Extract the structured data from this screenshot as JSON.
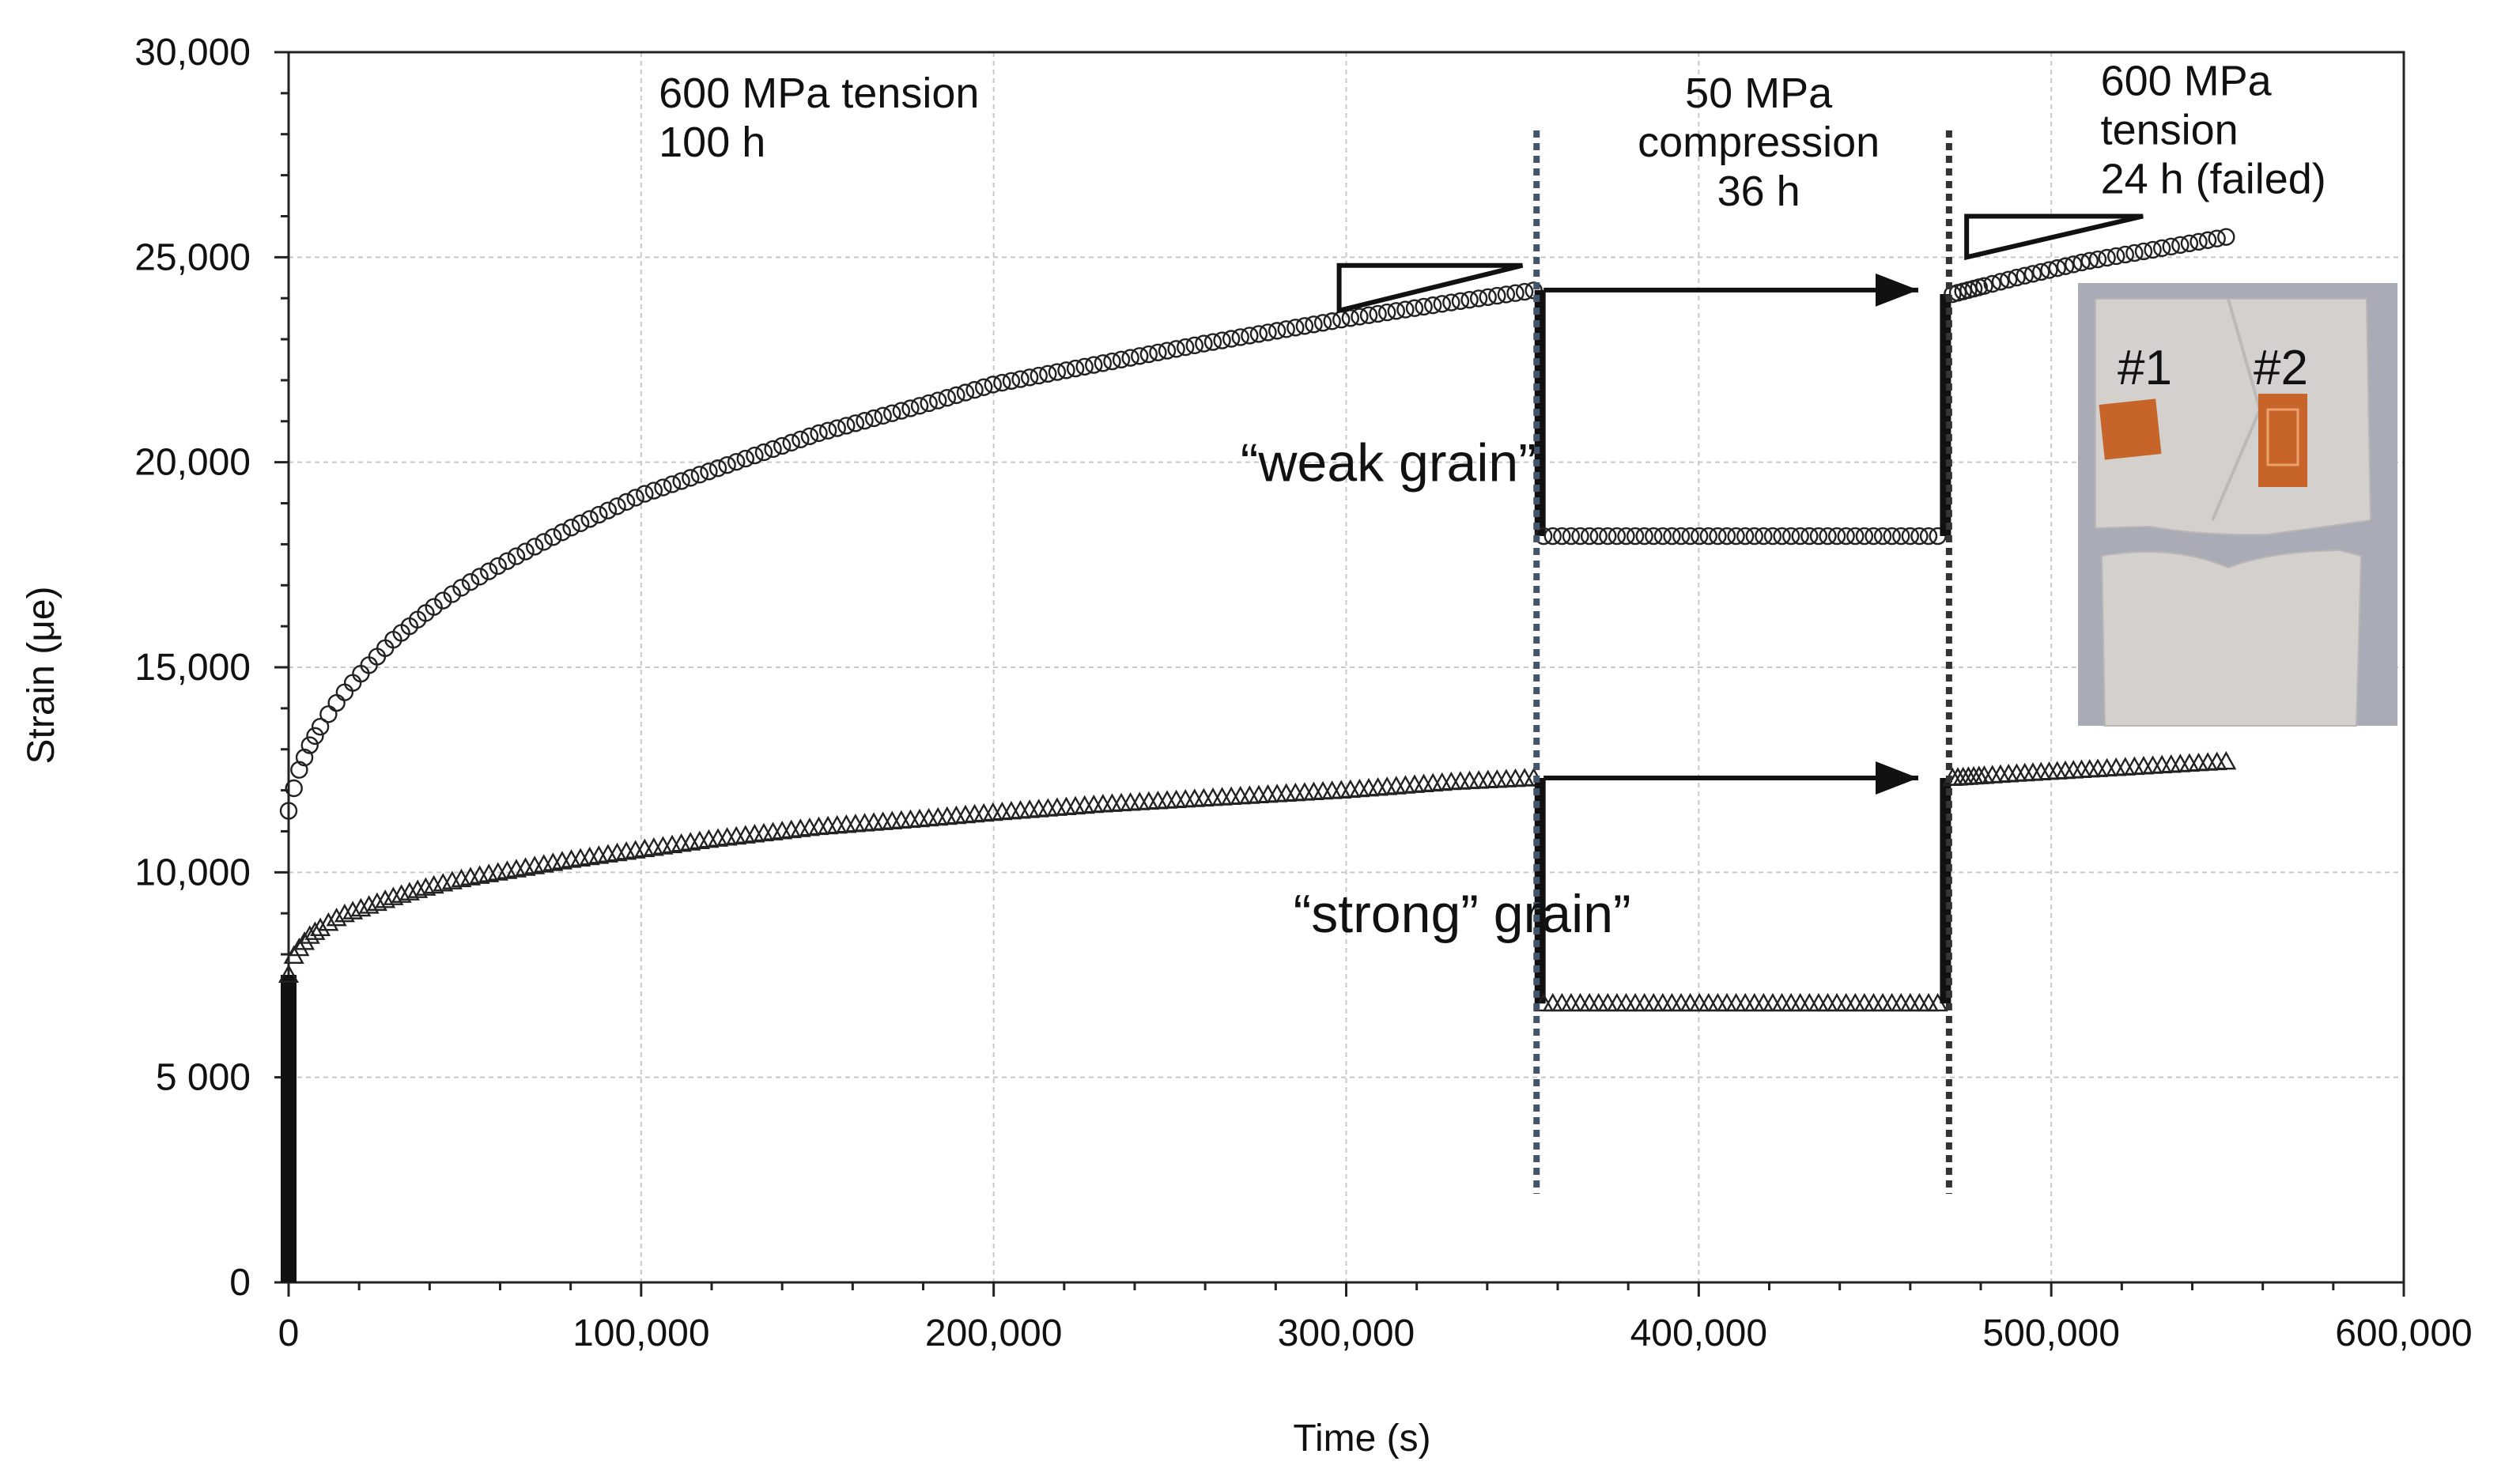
{
  "chart_data": {
    "type": "scatter",
    "title": "",
    "xlabel": "Time (s)",
    "ylabel": "Strain (μe)",
    "xlim": [
      0,
      600000
    ],
    "ylim": [
      0,
      30000
    ],
    "grid": true,
    "x_ticks": [
      {
        "value": 0,
        "label": "0"
      },
      {
        "value": 100000,
        "label": "100,000"
      },
      {
        "value": 200000,
        "label": "200,000"
      },
      {
        "value": 300000,
        "label": "300,000"
      },
      {
        "value": 400000,
        "label": "400,000"
      },
      {
        "value": 500000,
        "label": "500,000"
      },
      {
        "value": 600000,
        "label": "600,000"
      }
    ],
    "y_ticks": [
      {
        "value": 0,
        "label": "0"
      },
      {
        "value": 5000,
        "label": "5 000"
      },
      {
        "value": 10000,
        "label": "10,000"
      },
      {
        "value": 15000,
        "label": "15,000"
      },
      {
        "value": 20000,
        "label": "20,000"
      },
      {
        "value": 25000,
        "label": "25,000"
      },
      {
        "value": 30000,
        "label": "30,000"
      }
    ],
    "phase_boundaries": [
      354000,
      471000
    ],
    "series": [
      {
        "name": "weak grain",
        "marker": "circle",
        "label": "“weak grain”",
        "label_at": [
          270000,
          20000
        ],
        "tension1": [
          [
            0,
            11500
          ],
          [
            1000,
            11900
          ],
          [
            3000,
            12500
          ],
          [
            6000,
            13100
          ],
          [
            10000,
            13700
          ],
          [
            15000,
            14300
          ],
          [
            20000,
            14800
          ],
          [
            30000,
            15700
          ],
          [
            40000,
            16400
          ],
          [
            50000,
            17000
          ],
          [
            60000,
            17500
          ],
          [
            80000,
            18400
          ],
          [
            100000,
            19200
          ],
          [
            120000,
            19800
          ],
          [
            150000,
            20700
          ],
          [
            180000,
            21400
          ],
          [
            200000,
            21900
          ],
          [
            230000,
            22400
          ],
          [
            260000,
            22900
          ],
          [
            300000,
            23500
          ],
          [
            330000,
            23900
          ],
          [
            354000,
            24200
          ]
        ],
        "compression": [
          [
            355000,
            18200
          ],
          [
            470000,
            18200
          ]
        ],
        "tension2": [
          [
            472000,
            24100
          ],
          [
            490000,
            24500
          ],
          [
            510000,
            24900
          ],
          [
            530000,
            25200
          ],
          [
            550000,
            25500
          ]
        ]
      },
      {
        "name": "strong grain",
        "marker": "triangle",
        "label": "“strong” grain”",
        "label_at": [
          285000,
          9000
        ],
        "tension1": [
          [
            0,
            7500
          ],
          [
            1000,
            7900
          ],
          [
            3000,
            8150
          ],
          [
            6000,
            8450
          ],
          [
            10000,
            8700
          ],
          [
            15000,
            8950
          ],
          [
            20000,
            9100
          ],
          [
            30000,
            9400
          ],
          [
            40000,
            9650
          ],
          [
            50000,
            9850
          ],
          [
            60000,
            10000
          ],
          [
            80000,
            10300
          ],
          [
            100000,
            10550
          ],
          [
            120000,
            10800
          ],
          [
            150000,
            11100
          ],
          [
            180000,
            11300
          ],
          [
            200000,
            11450
          ],
          [
            230000,
            11650
          ],
          [
            260000,
            11800
          ],
          [
            300000,
            12000
          ],
          [
            330000,
            12200
          ],
          [
            354000,
            12300
          ]
        ],
        "compression": [
          [
            355000,
            6800
          ],
          [
            470000,
            6800
          ]
        ],
        "tension2": [
          [
            472000,
            12300
          ],
          [
            490000,
            12400
          ],
          [
            510000,
            12500
          ],
          [
            530000,
            12600
          ],
          [
            550000,
            12700
          ]
        ]
      }
    ],
    "loading_drop": {
      "x": 0,
      "y_min": 0,
      "y_max": 7500
    },
    "annotations": [
      {
        "lines": [
          "600 MPa tension",
          "100 h"
        ],
        "at": [
          105000,
          29000
        ],
        "align": "start"
      },
      {
        "lines": [
          "50 MPa",
          "compression",
          "36 h"
        ],
        "at": [
          417000,
          29000
        ],
        "align": "middle"
      },
      {
        "lines": [
          "600 MPa",
          "tension",
          "24 h (failed)"
        ],
        "at": [
          514000,
          29300
        ],
        "align": "start"
      }
    ],
    "slope_triangles": [
      {
        "series": "weak grain",
        "points": [
          [
            298000,
            23700
          ],
          [
            298000,
            24800
          ],
          [
            350000,
            24800
          ]
        ]
      },
      {
        "series": "weak grain",
        "points": [
          [
            476000,
            25000
          ],
          [
            476000,
            26000
          ],
          [
            526000,
            26000
          ]
        ]
      }
    ],
    "arrows": [
      {
        "series": "weak grain",
        "from": [
          356000,
          24200
        ],
        "to": [
          469000,
          24200
        ]
      },
      {
        "series": "strong grain",
        "from": [
          356000,
          12300
        ],
        "to": [
          469000,
          12300
        ]
      }
    ],
    "inset_photo": {
      "description": "failed specimen",
      "labels": [
        "#1",
        "#2"
      ],
      "colors": {
        "background": "#a9abb6",
        "metal": "#d3d0cd",
        "gauge": "#c6642a"
      }
    }
  }
}
